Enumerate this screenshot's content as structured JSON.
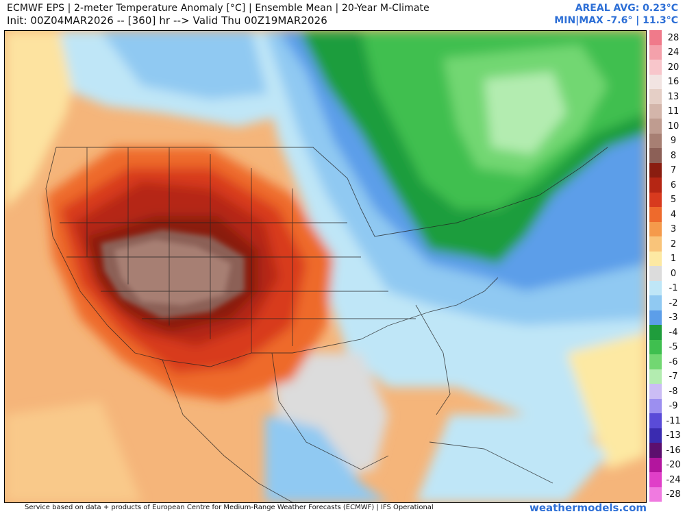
{
  "header": {
    "title_line1": "ECMWF EPS | 2-meter Temperature Anomaly [°C] | Ensemble Mean | 20-Year M-Climate",
    "title_line2": "Init: 00Z04MAR2026 -- [360] hr --> Valid Thu 00Z19MAR2026",
    "areal_avg": "AREAL AVG: 0.23°C",
    "min_max": "MIN|MAX -7.6° | 11.3°C"
  },
  "colorbar": {
    "entries": [
      {
        "label": "28",
        "color": "#f07a8a"
      },
      {
        "label": "24",
        "color": "#f4a1ab"
      },
      {
        "label": "20",
        "color": "#f8c6cb"
      },
      {
        "label": "16",
        "color": "#f2e4e2"
      },
      {
        "label": "13",
        "color": "#e5cfc6"
      },
      {
        "label": "11",
        "color": "#d3b5aa"
      },
      {
        "label": "10",
        "color": "#bf9c90"
      },
      {
        "label": "9",
        "color": "#a77f73"
      },
      {
        "label": "8",
        "color": "#8c6057"
      },
      {
        "label": "7",
        "color": "#8a1d10"
      },
      {
        "label": "6",
        "color": "#b52614"
      },
      {
        "label": "5",
        "color": "#d83a1e"
      },
      {
        "label": "4",
        "color": "#ee6a2c"
      },
      {
        "label": "3",
        "color": "#f59a4b"
      },
      {
        "label": "2",
        "color": "#f9c47a"
      },
      {
        "label": "1",
        "color": "#fde9a3"
      },
      {
        "label": "0",
        "color": "#dcdcdc"
      },
      {
        "label": "-1",
        "color": "#bfe6f7"
      },
      {
        "label": "-2",
        "color": "#90c9f2"
      },
      {
        "label": "-3",
        "color": "#5c9ee9"
      },
      {
        "label": "-4",
        "color": "#1f9d3c"
      },
      {
        "label": "-5",
        "color": "#3fbf4f"
      },
      {
        "label": "-6",
        "color": "#72d772"
      },
      {
        "label": "-7",
        "color": "#b3ecb0"
      },
      {
        "label": "-8",
        "color": "#cbbdf5"
      },
      {
        "label": "-9",
        "color": "#9c8ff0"
      },
      {
        "label": "-11",
        "color": "#5a4bd8"
      },
      {
        "label": "-13",
        "color": "#3a2bb0"
      },
      {
        "label": "-16",
        "color": "#5c0f6e"
      },
      {
        "label": "-20",
        "color": "#b3159e"
      },
      {
        "label": "-24",
        "color": "#e03fc8"
      },
      {
        "label": "-28",
        "color": "#f07ae0"
      }
    ]
  },
  "footer": {
    "credit": "Service based on data + products of European Centre for Medium-Range Weather Forecasts (ECMWF) | IFS Operational",
    "site": "weathermodels.com"
  }
}
